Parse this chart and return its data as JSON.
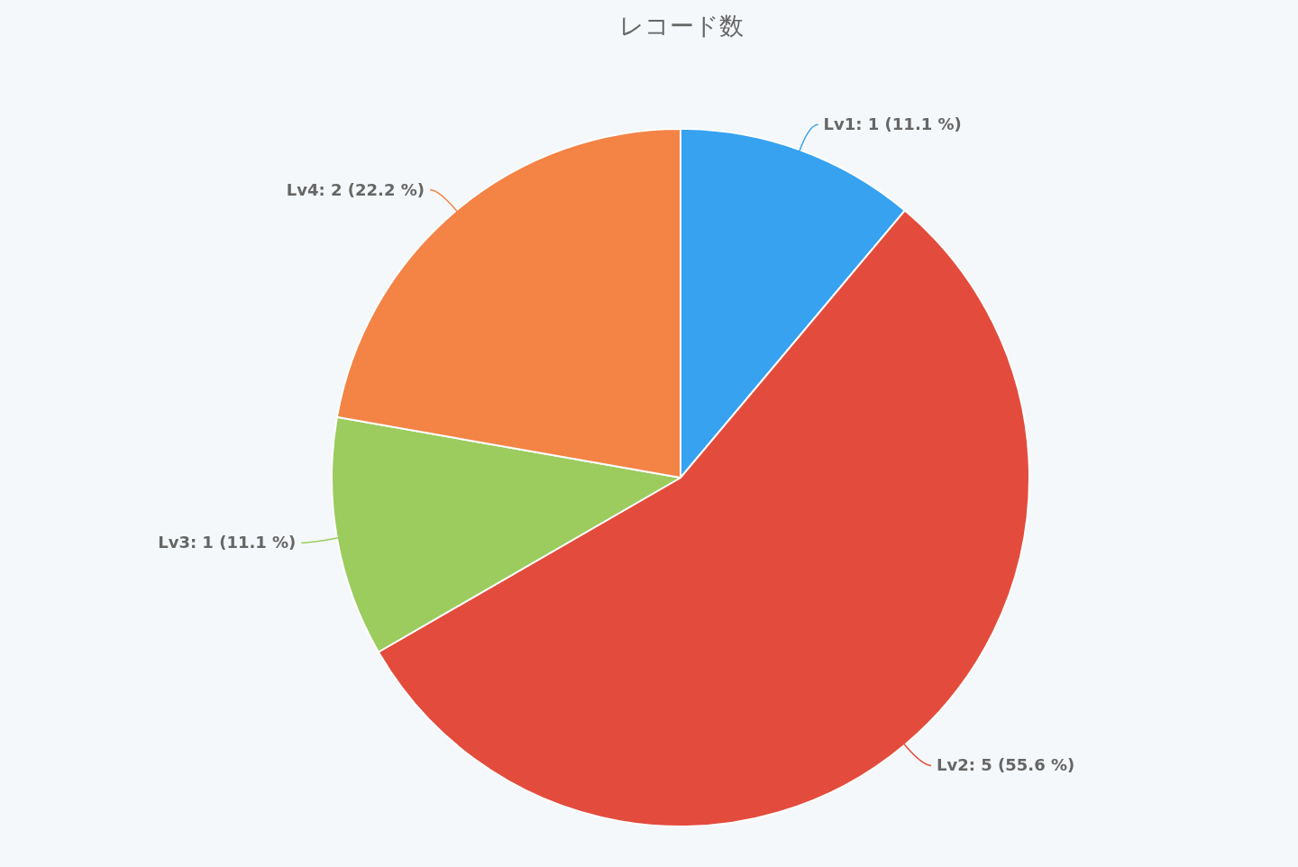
{
  "chart_data": {
    "type": "pie",
    "title": "レコード数",
    "categories": [
      "Lv1",
      "Lv2",
      "Lv3",
      "Lv4"
    ],
    "values": [
      1,
      5,
      1,
      2
    ],
    "colors": [
      "#36a2f0",
      "#e34c3c",
      "#9ccb5e",
      "#f48346"
    ],
    "value_labels": [
      ": 1 (11.1 %)",
      ": 5 (55.6 %)",
      ": 1 (11.1 %)",
      ": 2 (22.2 %)"
    ]
  }
}
